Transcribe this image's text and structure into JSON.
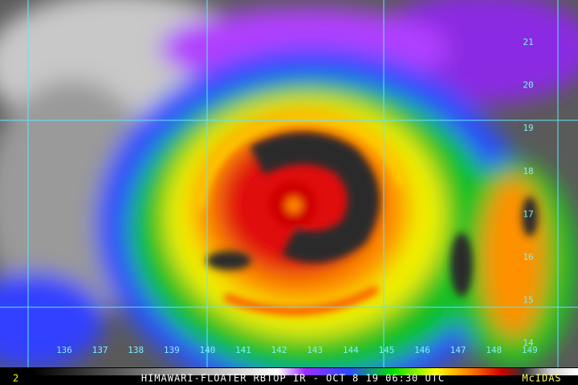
{
  "title_bar": {
    "caption": "HIMAWARI-FLOATER RBTOP IR - OCT 8 19 06:30 UTC",
    "logo": "McIDAS",
    "frame": "2"
  },
  "longitude_labels": [
    "136",
    "137",
    "138",
    "139",
    "140",
    "141",
    "142",
    "143",
    "144",
    "145",
    "146",
    "147",
    "148",
    "149"
  ],
  "latitude_labels": [
    "21",
    "20",
    "19",
    "18",
    "17",
    "16",
    "15",
    "14"
  ]
}
